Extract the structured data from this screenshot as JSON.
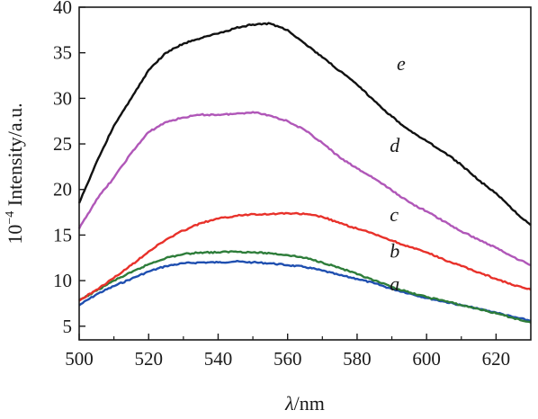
{
  "chart_data": {
    "type": "line",
    "xlabel_prefix": "λ",
    "xlabel_suffix": "/nm",
    "ylabel_prefix": "10",
    "ylabel_exponent": "−4",
    "ylabel_suffix": " Intensity/a.u.",
    "xlim": [
      500,
      630
    ],
    "ylim": [
      3.5,
      40
    ],
    "x_ticks": [
      500,
      520,
      540,
      560,
      580,
      600,
      620
    ],
    "y_ticks": [
      5,
      10,
      15,
      20,
      25,
      30,
      35,
      40
    ],
    "grid": false,
    "legend": "none",
    "series": [
      {
        "name": "a",
        "color": "#1f4fb0",
        "label_at": [
          592,
          9.6
        ],
        "x": [
          500,
          505,
          510,
          515,
          520,
          525,
          530,
          535,
          540,
          545,
          550,
          555,
          560,
          565,
          570,
          575,
          580,
          585,
          590,
          595,
          600,
          605,
          610,
          615,
          620,
          625,
          630
        ],
        "y": [
          7.3,
          8.5,
          9.4,
          10.2,
          11.0,
          11.6,
          11.9,
          12.0,
          12.0,
          12.1,
          12.0,
          11.9,
          11.7,
          11.5,
          11.1,
          10.6,
          10.2,
          9.7,
          9.1,
          8.6,
          8.1,
          7.7,
          7.3,
          6.9,
          6.5,
          6.0,
          5.6
        ]
      },
      {
        "name": "b",
        "color": "#2e7d3a",
        "label_at": [
          592,
          13.2
        ],
        "x": [
          500,
          505,
          510,
          515,
          520,
          525,
          530,
          535,
          540,
          545,
          550,
          555,
          560,
          565,
          570,
          575,
          580,
          585,
          590,
          595,
          600,
          605,
          610,
          615,
          620,
          625,
          630
        ],
        "y": [
          7.8,
          8.9,
          10.0,
          10.9,
          11.8,
          12.5,
          12.9,
          13.1,
          13.1,
          13.2,
          13.1,
          13.0,
          12.8,
          12.5,
          12.0,
          11.4,
          10.7,
          10.0,
          9.3,
          8.7,
          8.2,
          7.8,
          7.3,
          6.9,
          6.4,
          5.9,
          5.4
        ]
      },
      {
        "name": "c",
        "color": "#e8312a",
        "label_at": [
          592,
          17.2
        ],
        "x": [
          500,
          505,
          510,
          515,
          520,
          525,
          530,
          535,
          540,
          545,
          550,
          555,
          560,
          565,
          570,
          575,
          580,
          585,
          590,
          595,
          600,
          605,
          610,
          615,
          620,
          625,
          630
        ],
        "y": [
          7.8,
          9.0,
          10.3,
          11.7,
          13.2,
          14.5,
          15.5,
          16.3,
          16.8,
          17.1,
          17.3,
          17.3,
          17.4,
          17.3,
          17.0,
          16.3,
          15.7,
          15.1,
          14.4,
          13.7,
          13.1,
          12.3,
          11.6,
          10.9,
          10.2,
          9.5,
          9.0
        ]
      },
      {
        "name": "d",
        "color": "#b057b8",
        "label_at": [
          592,
          24.8
        ],
        "x": [
          500,
          505,
          510,
          515,
          520,
          525,
          530,
          535,
          540,
          545,
          550,
          555,
          560,
          565,
          570,
          575,
          580,
          585,
          590,
          595,
          600,
          605,
          610,
          615,
          620,
          625,
          630
        ],
        "y": [
          15.7,
          18.9,
          21.3,
          24.0,
          26.3,
          27.4,
          27.9,
          28.2,
          28.2,
          28.3,
          28.5,
          28.1,
          27.5,
          26.5,
          25.1,
          23.5,
          22.3,
          21.2,
          19.9,
          18.6,
          17.6,
          16.5,
          15.4,
          14.5,
          13.6,
          12.6,
          11.7
        ]
      },
      {
        "name": "e",
        "color": "#111111",
        "label_at": [
          594,
          33.8
        ],
        "x": [
          500,
          505,
          510,
          515,
          520,
          525,
          530,
          535,
          540,
          545,
          550,
          555,
          560,
          565,
          570,
          575,
          580,
          585,
          590,
          595,
          600,
          605,
          610,
          615,
          620,
          625,
          630
        ],
        "y": [
          18.5,
          23.0,
          27.0,
          30.0,
          33.1,
          35.0,
          36.0,
          36.6,
          37.1,
          37.7,
          38.1,
          38.2,
          37.5,
          36.0,
          34.5,
          33.0,
          31.5,
          29.7,
          28.0,
          26.5,
          25.3,
          24.1,
          22.7,
          21.0,
          19.6,
          17.7,
          16.1
        ]
      }
    ]
  }
}
